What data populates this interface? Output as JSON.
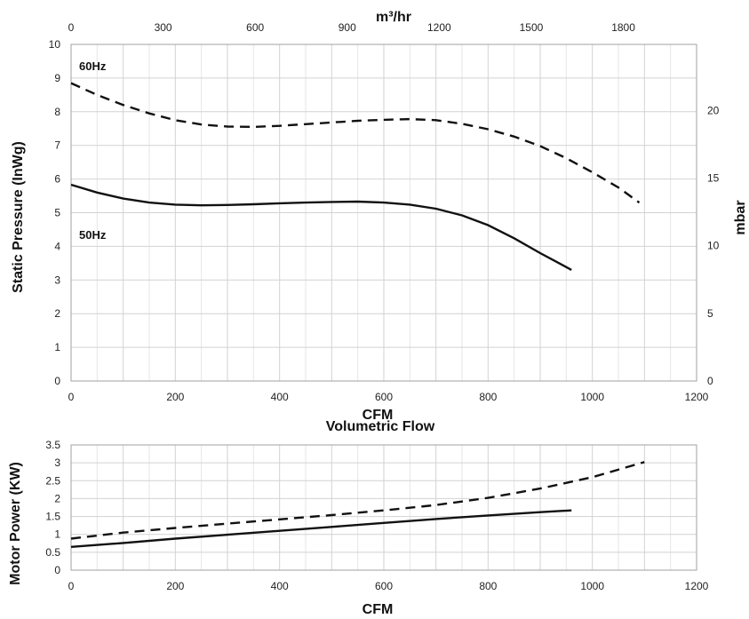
{
  "chart_data": [
    {
      "type": "line",
      "title": "",
      "xlabel": "CFM",
      "ylabel": "Static Pressure (InWg)",
      "top_axis": {
        "label": "m³/hr",
        "ticks": [
          "0",
          "300",
          "600",
          "900",
          "1200",
          "1500",
          "1800"
        ]
      },
      "right_axis": {
        "label": "mbar",
        "ticks": [
          "0",
          "5",
          "10",
          "15",
          "20"
        ]
      },
      "x_ticks": [
        "0",
        "200",
        "400",
        "600",
        "800",
        "1000",
        "1200"
      ],
      "y_ticks": [
        "0",
        "1",
        "2",
        "3",
        "4",
        "5",
        "6",
        "7",
        "8",
        "9",
        "10"
      ],
      "xlim": [
        0,
        1200
      ],
      "ylim": [
        0,
        10
      ],
      "grid": true,
      "series": [
        {
          "name": "60Hz",
          "style": "dashed",
          "x": [
            0,
            50,
            100,
            150,
            200,
            250,
            300,
            350,
            400,
            450,
            500,
            550,
            600,
            650,
            700,
            750,
            800,
            850,
            900,
            950,
            1000,
            1050,
            1090
          ],
          "y": [
            8.85,
            8.5,
            8.2,
            7.95,
            7.75,
            7.62,
            7.56,
            7.55,
            7.58,
            7.63,
            7.68,
            7.73,
            7.76,
            7.78,
            7.75,
            7.64,
            7.48,
            7.26,
            6.98,
            6.62,
            6.2,
            5.75,
            5.3
          ]
        },
        {
          "name": "50Hz",
          "style": "solid",
          "x": [
            0,
            50,
            100,
            150,
            200,
            250,
            300,
            350,
            400,
            450,
            500,
            550,
            600,
            650,
            700,
            750,
            800,
            850,
            900,
            960
          ],
          "y": [
            5.83,
            5.6,
            5.42,
            5.3,
            5.24,
            5.22,
            5.23,
            5.25,
            5.28,
            5.3,
            5.32,
            5.33,
            5.3,
            5.24,
            5.12,
            4.92,
            4.63,
            4.24,
            3.8,
            3.3
          ]
        }
      ]
    },
    {
      "type": "line",
      "title": "Volumetric Flow",
      "xlabel": "CFM",
      "ylabel": "Motor Power (KW)",
      "x_ticks": [
        "0",
        "200",
        "400",
        "600",
        "800",
        "1000",
        "1200"
      ],
      "y_ticks": [
        "0",
        "0.5",
        "1",
        "1.5",
        "2",
        "2.5",
        "3",
        "3.5"
      ],
      "xlim": [
        0,
        1200
      ],
      "ylim": [
        0,
        3.5
      ],
      "grid": true,
      "series": [
        {
          "name": "60Hz",
          "style": "dashed",
          "x": [
            0,
            100,
            200,
            300,
            400,
            500,
            600,
            700,
            800,
            900,
            1000,
            1100
          ],
          "y": [
            0.88,
            1.05,
            1.18,
            1.3,
            1.42,
            1.54,
            1.67,
            1.82,
            2.02,
            2.28,
            2.6,
            3.02
          ]
        },
        {
          "name": "50Hz",
          "style": "solid",
          "x": [
            0,
            100,
            200,
            300,
            400,
            500,
            600,
            700,
            800,
            900,
            960
          ],
          "y": [
            0.65,
            0.76,
            0.88,
            0.99,
            1.1,
            1.21,
            1.32,
            1.43,
            1.53,
            1.62,
            1.67
          ]
        }
      ]
    }
  ]
}
